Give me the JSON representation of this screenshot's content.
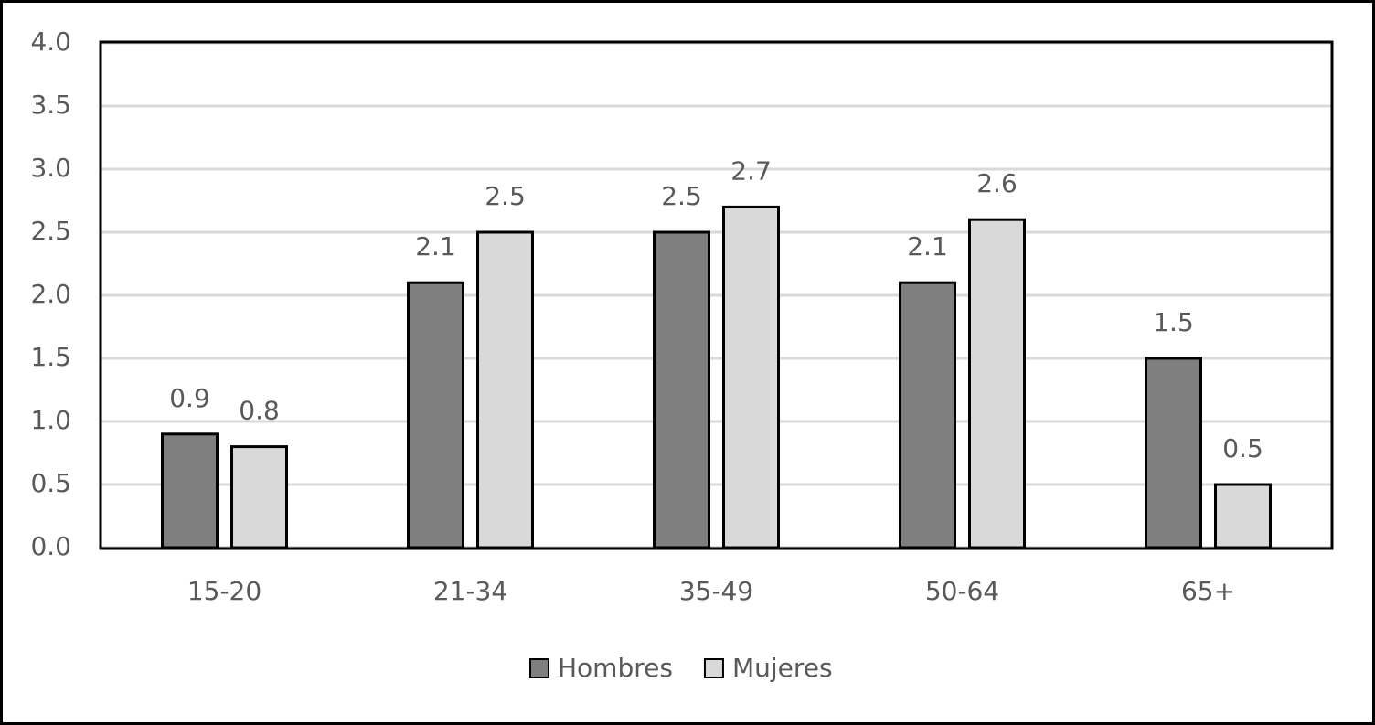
{
  "chart_data": {
    "type": "bar",
    "categories": [
      "15-20",
      "21-34",
      "35-49",
      "50-64",
      "65+"
    ],
    "series": [
      {
        "name": "Hombres",
        "color": "#7f7f7f",
        "values": [
          0.9,
          2.1,
          2.5,
          2.1,
          1.5
        ]
      },
      {
        "name": "Mujeres",
        "color": "#d9d9d9",
        "values": [
          0.8,
          2.5,
          2.7,
          2.6,
          0.5
        ]
      }
    ],
    "ylim": [
      0,
      4
    ],
    "yticks": [
      {
        "value": 0,
        "label": "0.0"
      },
      0.5,
      {
        "value": 1,
        "label": "1.0"
      },
      1.5,
      {
        "value": 2,
        "label": "2.0"
      },
      2.5,
      {
        "value": 3,
        "label": "3.0"
      },
      3.5,
      {
        "value": 4,
        "label": "4.0"
      }
    ],
    "grid": true,
    "legend": "bottom"
  }
}
